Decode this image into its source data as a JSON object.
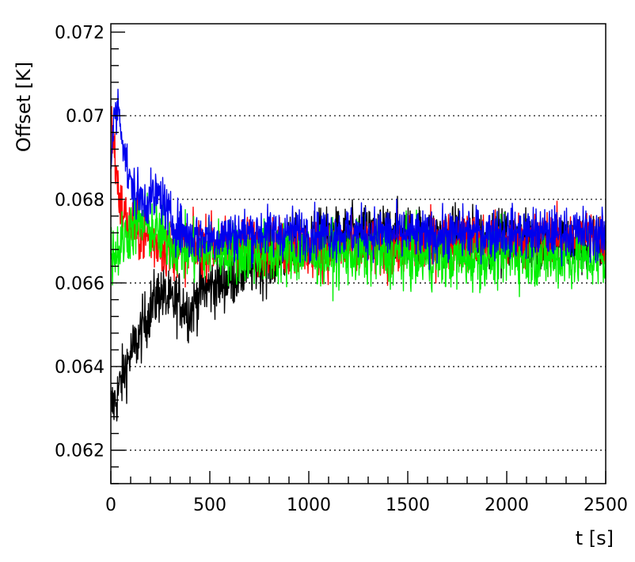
{
  "chart_data": {
    "type": "line",
    "title": "",
    "xlabel": "t [s]",
    "ylabel": "Offset [K]",
    "xlim": [
      0,
      2500
    ],
    "ylim": [
      0.0612,
      0.0722
    ],
    "x_ticks": [
      0,
      500,
      1000,
      1500,
      2000,
      2500
    ],
    "x_tick_labels": [
      "0",
      "500",
      "1000",
      "1500",
      "2000",
      "2500"
    ],
    "y_ticks": [
      0.062,
      0.064,
      0.066,
      0.068,
      0.07,
      0.072
    ],
    "y_tick_labels": [
      "0.062",
      "0.064",
      "0.066",
      "0.068",
      "0.07",
      "0.072"
    ],
    "grid": {
      "horizontal": true,
      "vertical": false,
      "style": "dotted"
    },
    "legend": "none",
    "series": [
      {
        "color": "#000000",
        "x": [
          0,
          25,
          50,
          75,
          100,
          125,
          150,
          175,
          200,
          250,
          300,
          350,
          400,
          450,
          500,
          600,
          700,
          800,
          900,
          1000,
          1200,
          1400,
          1600,
          1800,
          2000,
          2200,
          2400,
          2500
        ],
        "y": [
          0.063,
          0.0632,
          0.0636,
          0.064,
          0.0643,
          0.0645,
          0.0648,
          0.0651,
          0.0654,
          0.0658,
          0.0655,
          0.0656,
          0.0653,
          0.0658,
          0.0659,
          0.0661,
          0.0664,
          0.0665,
          0.0668,
          0.067,
          0.0671,
          0.0672,
          0.0671,
          0.0671,
          0.067,
          0.067,
          0.0669,
          0.0669
        ],
        "noise": 0.00065
      },
      {
        "color": "#ff0000",
        "x": [
          0,
          10,
          25,
          50,
          100,
          150,
          200,
          300,
          400,
          500,
          700,
          1000,
          1200,
          1400,
          1600,
          1800,
          2000,
          2200,
          2400,
          2500
        ],
        "y": [
          0.07,
          0.0695,
          0.0688,
          0.0678,
          0.0673,
          0.0672,
          0.067,
          0.0668,
          0.0668,
          0.0669,
          0.0669,
          0.0668,
          0.0668,
          0.0668,
          0.0669,
          0.067,
          0.067,
          0.067,
          0.0671,
          0.067
        ],
        "noise": 0.00062
      },
      {
        "color": "#00ee00",
        "x": [
          0,
          25,
          50,
          100,
          150,
          200,
          300,
          400,
          500,
          700,
          1000,
          1200,
          1400,
          1600,
          1800,
          2000,
          2200,
          2400,
          2500
        ],
        "y": [
          0.0668,
          0.0667,
          0.0669,
          0.0673,
          0.0674,
          0.0673,
          0.067,
          0.0667,
          0.0668,
          0.0667,
          0.0667,
          0.0667,
          0.0667,
          0.0666,
          0.0666,
          0.0667,
          0.0666,
          0.0666,
          0.0665
        ],
        "noise": 0.00068
      },
      {
        "color": "#0000ee",
        "x": [
          0,
          20,
          40,
          60,
          80,
          100,
          150,
          200,
          250,
          300,
          400,
          500,
          700,
          1000,
          1200,
          1400,
          1600,
          1800,
          2000,
          2200,
          2400,
          2500
        ],
        "y": [
          0.069,
          0.07,
          0.0702,
          0.0695,
          0.0688,
          0.0683,
          0.068,
          0.068,
          0.0681,
          0.0675,
          0.0671,
          0.0671,
          0.0672,
          0.0672,
          0.0672,
          0.0672,
          0.0671,
          0.0672,
          0.0672,
          0.0672,
          0.0672,
          0.0671
        ],
        "noise": 0.00055
      }
    ]
  }
}
